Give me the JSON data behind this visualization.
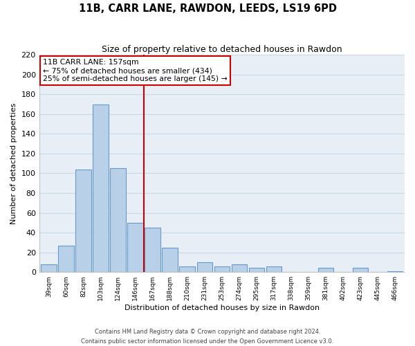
{
  "title": "11B, CARR LANE, RAWDON, LEEDS, LS19 6PD",
  "subtitle": "Size of property relative to detached houses in Rawdon",
  "xlabel": "Distribution of detached houses by size in Rawdon",
  "ylabel": "Number of detached properties",
  "bin_labels": [
    "39sqm",
    "60sqm",
    "82sqm",
    "103sqm",
    "124sqm",
    "146sqm",
    "167sqm",
    "188sqm",
    "210sqm",
    "231sqm",
    "253sqm",
    "274sqm",
    "295sqm",
    "317sqm",
    "338sqm",
    "359sqm",
    "381sqm",
    "402sqm",
    "423sqm",
    "445sqm",
    "466sqm"
  ],
  "bar_heights": [
    8,
    27,
    104,
    170,
    105,
    50,
    45,
    25,
    6,
    10,
    6,
    8,
    4,
    6,
    0,
    0,
    4,
    0,
    4,
    0,
    1
  ],
  "bar_color": "#b8d0e8",
  "bar_edge_color": "#6699cc",
  "vline_x": 5.5,
  "vline_color": "#cc0000",
  "annotation_title": "11B CARR LANE: 157sqm",
  "annotation_line1": "← 75% of detached houses are smaller (434)",
  "annotation_line2": "25% of semi-detached houses are larger (145) →",
  "annotation_box_color": "#ffffff",
  "annotation_box_edge": "#cc0000",
  "ylim": [
    0,
    220
  ],
  "yticks": [
    0,
    20,
    40,
    60,
    80,
    100,
    120,
    140,
    160,
    180,
    200,
    220
  ],
  "footer1": "Contains HM Land Registry data © Crown copyright and database right 2024.",
  "footer2": "Contains public sector information licensed under the Open Government Licence v3.0.",
  "bg_color": "#e8eef5"
}
